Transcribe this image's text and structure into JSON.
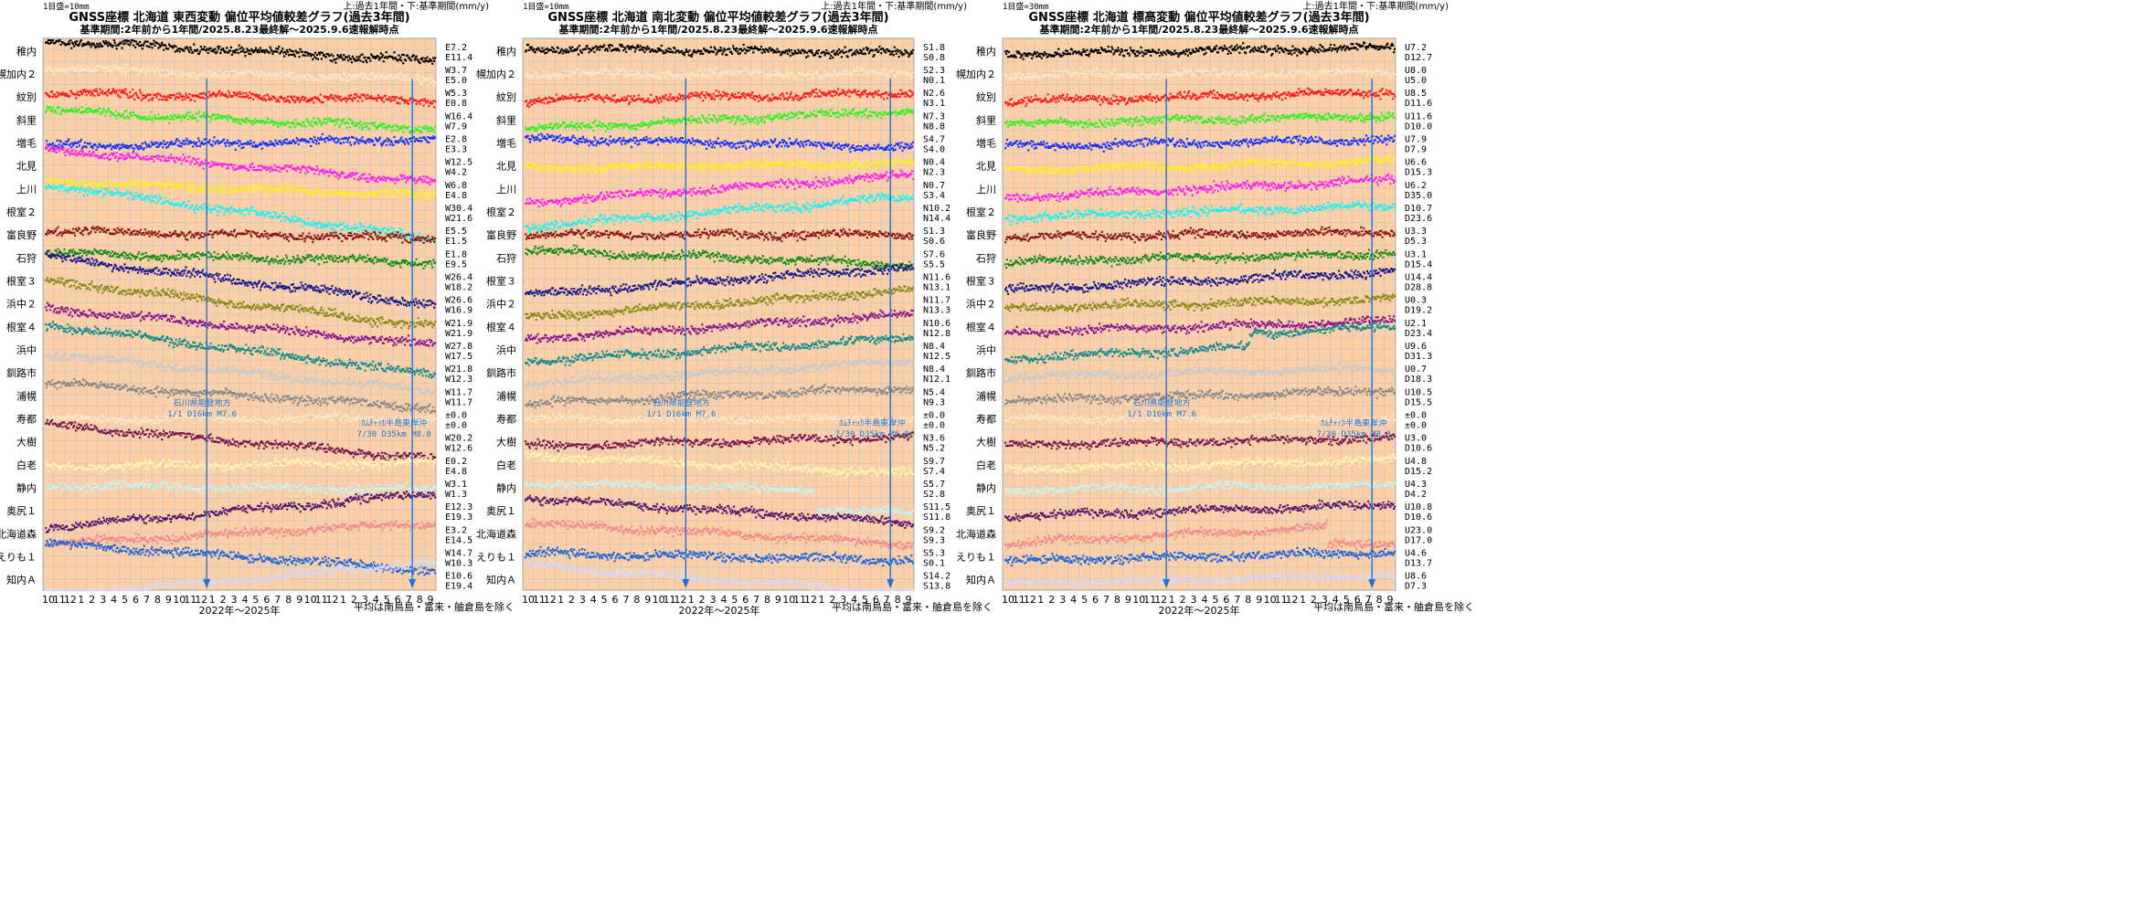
{
  "shared": {
    "x_ticks": [
      "10",
      "11",
      "12",
      "1",
      "2",
      "3",
      "4",
      "5",
      "6",
      "7",
      "8",
      "9",
      "10",
      "11",
      "12",
      "1",
      "2",
      "3",
      "4",
      "5",
      "6",
      "7",
      "8",
      "9",
      "10",
      "11",
      "12",
      "1",
      "2",
      "3",
      "4",
      "5",
      "6",
      "7",
      "8",
      "9"
    ],
    "x_label": "2022年～2025年",
    "footnote": "平均は南鳥島・富来・舳倉島を除く",
    "header_right": "上:過去1年間・下:基準期間(mm/y)",
    "subtitle": "基準期間:2年前から1年間/2025.8.23最終解～2025.9.6速報解時点",
    "event1_text": [
      "石川県能登地方",
      "1/1 D16km M7.6"
    ],
    "event2_text": [
      "ｶﾑﾁｬｯｶ半島東岸沖",
      "7/30 D35km M8.8"
    ],
    "colors": {
      "plot_bg": "#fbd0a9",
      "grid": "#c2c2c2",
      "event_line": "#1e74d4",
      "event_text": "#1e74d4"
    }
  },
  "chart_data": [
    {
      "type": "scatter",
      "scale": "1目盛=10mm",
      "title": "GNSS座標 北海道 東西変動 偏位平均値較差グラフ(過去3年間)",
      "stations": [
        "稚内",
        "幌加内２",
        "紋別",
        "斜里",
        "増毛",
        "北見",
        "上川",
        "根室２",
        "富良野",
        "石狩",
        "根室３",
        "浜中２",
        "根室４",
        "浜中",
        "釧路市",
        "浦幌",
        "寿都",
        "大樹",
        "白老",
        "静内",
        "奥尻１",
        "北海道森",
        "えりも１",
        "知内Ａ"
      ],
      "rates_top": [
        "E7.2",
        "W3.7",
        "W5.3",
        "W16.4",
        "E2.8",
        "W12.5",
        "W6.8",
        "W30.4",
        "E5.5",
        "E1.8",
        "W26.4",
        "W26.6",
        "W21.9",
        "W27.8",
        "W21.8",
        "W11.7",
        "±0.0",
        "W20.2",
        "E0.2",
        "W3.1",
        "E12.3",
        "E3.2",
        "W14.7",
        "E10.6"
      ],
      "rates_bottom": [
        "E11.4",
        "E5.0",
        "E0.8",
        "W7.9",
        "E3.3",
        "W4.2",
        "E4.8",
        "W21.6",
        "E1.5",
        "E9.5",
        "W18.2",
        "W16.9",
        "W21.9",
        "W17.5",
        "W12.3",
        "W11.7",
        "±0.0",
        "W12.6",
        "E4.8",
        "W1.3",
        "E19.3",
        "E14.5",
        "W10.3",
        "E19.4"
      ],
      "series": [
        {
          "name": "稚内",
          "color": "#000000",
          "trend": -0.9,
          "step_month": null,
          "step": 0
        },
        {
          "name": "幌加内２",
          "color": "#fde5c6",
          "trend": -0.5,
          "step_month": null,
          "step": 0
        },
        {
          "name": "紋別",
          "color": "#ff1a1a",
          "trend": -0.3,
          "step_month": null,
          "step": 0
        },
        {
          "name": "斜里",
          "color": "#33ee22",
          "trend": -0.8,
          "step_month": null,
          "step": 0
        },
        {
          "name": "増毛",
          "color": "#1a33ff",
          "trend": 0.3,
          "step_month": null,
          "step": 0
        },
        {
          "name": "北見",
          "color": "#ff22ee",
          "trend": -1.4,
          "step_month": null,
          "step": 0
        },
        {
          "name": "上川",
          "color": "#ffee22",
          "trend": -0.6,
          "step_month": null,
          "step": 0
        },
        {
          "name": "根室２",
          "color": "#22eeee",
          "trend": -2.4,
          "step_month": null,
          "step": 0
        },
        {
          "name": "富良野",
          "color": "#8b1a1a",
          "trend": -0.3,
          "step_month": null,
          "step": 0
        },
        {
          "name": "石狩",
          "color": "#1a8b1a",
          "trend": -0.4,
          "step_month": null,
          "step": 0
        },
        {
          "name": "根室３",
          "color": "#1a1a8b",
          "trend": -2.1,
          "step_month": null,
          "step": 0
        },
        {
          "name": "浜中２",
          "color": "#8b8b1a",
          "trend": -2.0,
          "step_month": null,
          "step": 0
        },
        {
          "name": "根室４",
          "color": "#8b1a8b",
          "trend": -1.6,
          "step_month": null,
          "step": 0
        },
        {
          "name": "浜中",
          "color": "#1a8b8b",
          "trend": -2.2,
          "step_month": null,
          "step": 0
        },
        {
          "name": "釧路市",
          "color": "#c8c8c8",
          "trend": -1.6,
          "step_month": null,
          "step": 0
        },
        {
          "name": "浦幌",
          "color": "#8a8a8a",
          "trend": -1.1,
          "step_month": null,
          "step": 0
        },
        {
          "name": "寿都",
          "color": "#fde5c6",
          "trend": 0,
          "step_month": null,
          "step": 0
        },
        {
          "name": "大樹",
          "color": "#7b1a4e",
          "trend": -1.5,
          "step_month": null,
          "step": 0
        },
        {
          "name": "白老",
          "color": "#fff5b0",
          "trend": 0.2,
          "step_month": null,
          "step": 0
        },
        {
          "name": "静内",
          "color": "#c8f2f0",
          "trend": -0.2,
          "step_month": null,
          "step": 0
        },
        {
          "name": "奥尻１",
          "color": "#5a1a6a",
          "trend": 1.5,
          "step_month": null,
          "step": 0
        },
        {
          "name": "北海道森",
          "color": "#f28a8a",
          "trend": 0.9,
          "step_month": null,
          "step": 0
        },
        {
          "name": "えりも１",
          "color": "#2266dd",
          "trend": -1.2,
          "step_month": null,
          "step": 0
        },
        {
          "name": "知内Ａ",
          "color": "#d8d8f4",
          "trend": 1.5,
          "step_month": null,
          "step": 0
        }
      ]
    },
    {
      "type": "scatter",
      "scale": "1目盛=10mm",
      "title": "GNSS座標 北海道 南北変動 偏位平均値較差グラフ(過去3年間)",
      "stations": [
        "稚内",
        "幌加内２",
        "紋別",
        "斜里",
        "増毛",
        "北見",
        "上川",
        "根室２",
        "富良野",
        "石狩",
        "根室３",
        "浜中２",
        "根室４",
        "浜中",
        "釧路市",
        "浦幌",
        "寿都",
        "大樹",
        "白老",
        "静内",
        "奥尻１",
        "北海道森",
        "えりも１",
        "知内Ａ"
      ],
      "rates_top": [
        "S1.8",
        "S2.3",
        "N2.6",
        "N7.3",
        "S4.7",
        "N0.4",
        "N0.7",
        "N10.2",
        "S1.3",
        "S7.6",
        "N11.6",
        "N11.7",
        "N10.6",
        "N8.4",
        "N8.4",
        "N5.4",
        "±0.0",
        "N3.6",
        "S9.7",
        "S5.7",
        "S11.5",
        "S9.2",
        "S5.3",
        "S14.2"
      ],
      "rates_bottom": [
        "S0.8",
        "N0.1",
        "N3.1",
        "N8.8",
        "S4.0",
        "N2.3",
        "S3.4",
        "N14.4",
        "S0.6",
        "S5.5",
        "N13.1",
        "N13.3",
        "N12.8",
        "N12.5",
        "N12.1",
        "N9.3",
        "±0.0",
        "N5.2",
        "S7.4",
        "S2.8",
        "S11.8",
        "S9.3",
        "S0.1",
        "S13.8"
      ],
      "series": [
        {
          "name": "稚内",
          "color": "#000000",
          "trend": -0.2,
          "step_month": null,
          "step": 0
        },
        {
          "name": "幌加内２",
          "color": "#fde5c6",
          "trend": 0,
          "step_month": null,
          "step": 0
        },
        {
          "name": "紋別",
          "color": "#ff1a1a",
          "trend": 0.3,
          "step_month": null,
          "step": 0
        },
        {
          "name": "斜里",
          "color": "#33ee22",
          "trend": 0.8,
          "step_month": null,
          "step": 0
        },
        {
          "name": "増毛",
          "color": "#1a33ff",
          "trend": -0.4,
          "step_month": null,
          "step": 0
        },
        {
          "name": "北見",
          "color": "#ffee22",
          "trend": 0.2,
          "step_month": null,
          "step": 0
        },
        {
          "name": "上川",
          "color": "#ff22ee",
          "trend": 1.2,
          "step_month": null,
          "step": 0
        },
        {
          "name": "根室２",
          "color": "#22eeee",
          "trend": 1.3,
          "step_month": null,
          "step": 0
        },
        {
          "name": "富良野",
          "color": "#8b1a1a",
          "trend": 0,
          "step_month": null,
          "step": 0
        },
        {
          "name": "石狩",
          "color": "#1a8b1a",
          "trend": -0.6,
          "step_month": null,
          "step": 0
        },
        {
          "name": "根室３",
          "color": "#1a1a8b",
          "trend": 1.2,
          "step_month": null,
          "step": 0
        },
        {
          "name": "浜中２",
          "color": "#8b8b1a",
          "trend": 1.2,
          "step_month": null,
          "step": 0
        },
        {
          "name": "根室４",
          "color": "#8b1a8b",
          "trend": 1.1,
          "step_month": null,
          "step": 0
        },
        {
          "name": "浜中",
          "color": "#1a8b8b",
          "trend": 1.0,
          "step_month": null,
          "step": 0
        },
        {
          "name": "釧路市",
          "color": "#c8c8c8",
          "trend": 1.0,
          "step_month": null,
          "step": 0
        },
        {
          "name": "浦幌",
          "color": "#8a8a8a",
          "trend": 0.7,
          "step_month": null,
          "step": 0
        },
        {
          "name": "寿都",
          "color": "#fde5c6",
          "trend": 0,
          "step_month": null,
          "step": 0
        },
        {
          "name": "大樹",
          "color": "#7b1a4e",
          "trend": 0.4,
          "step_month": null,
          "step": 0
        },
        {
          "name": "白老",
          "color": "#fff5b0",
          "trend": -0.8,
          "step_month": null,
          "step": 0
        },
        {
          "name": "静内",
          "color": "#c8f2f0",
          "trend": -0.4,
          "step_month": 26,
          "step": -0.9
        },
        {
          "name": "奥尻１",
          "color": "#5a1a6a",
          "trend": -1.1,
          "step_month": null,
          "step": 0
        },
        {
          "name": "北海道森",
          "color": "#f28a8a",
          "trend": -0.9,
          "step_month": null,
          "step": 0
        },
        {
          "name": "えりも１",
          "color": "#2266dd",
          "trend": -0.3,
          "step_month": null,
          "step": 0
        },
        {
          "name": "知内Ａ",
          "color": "#d8d8f4",
          "trend": -1.3,
          "step_month": null,
          "step": 0
        }
      ]
    },
    {
      "type": "scatter",
      "scale": "1目盛=30mm",
      "title": "GNSS座標 北海道 標高変動 偏位平均値較差グラフ(過去3年間)",
      "stations": [
        "稚内",
        "幌加内２",
        "紋別",
        "斜里",
        "増毛",
        "北見",
        "上川",
        "根室２",
        "富良野",
        "石狩",
        "根室３",
        "浜中２",
        "根室４",
        "浜中",
        "釧路市",
        "浦幌",
        "寿都",
        "大樹",
        "白老",
        "静内",
        "奥尻１",
        "北海道森",
        "えりも１",
        "知内Ａ"
      ],
      "rates_top": [
        "U7.2",
        "U8.0",
        "U8.5",
        "U11.6",
        "U7.9",
        "U6.6",
        "U6.2",
        "D10.7",
        "U3.3",
        "U3.1",
        "U14.4",
        "U0.3",
        "U2.1",
        "U9.6",
        "U0.7",
        "U10.5",
        "±0.0",
        "U3.0",
        "U4.8",
        "U4.3",
        "U10.8",
        "U23.0",
        "U4.6",
        "U8.6"
      ],
      "rates_bottom": [
        "D12.7",
        "U5.0",
        "D11.6",
        "D10.0",
        "D7.9",
        "D15.3",
        "D35.0",
        "D23.6",
        "D5.3",
        "D15.4",
        "D28.8",
        "D19.2",
        "D23.4",
        "D31.3",
        "D18.3",
        "D15.5",
        "±0.0",
        "D10.6",
        "D15.2",
        "D4.2",
        "D10.6",
        "D17.0",
        "D13.7",
        "D7.3"
      ],
      "series": [
        {
          "name": "稚内",
          "color": "#000000",
          "trend": 0.3,
          "step_month": null,
          "step": 0
        },
        {
          "name": "幌加内２",
          "color": "#fde5c6",
          "trend": 0.1,
          "step_month": null,
          "step": 0
        },
        {
          "name": "紋別",
          "color": "#ff1a1a",
          "trend": 0.4,
          "step_month": null,
          "step": 0
        },
        {
          "name": "斜里",
          "color": "#33ee22",
          "trend": 0.4,
          "step_month": null,
          "step": 0
        },
        {
          "name": "増毛",
          "color": "#1a33ff",
          "trend": 0.3,
          "step_month": null,
          "step": 0
        },
        {
          "name": "北見",
          "color": "#ffee22",
          "trend": 0.4,
          "step_month": null,
          "step": 0
        },
        {
          "name": "上川",
          "color": "#ff22ee",
          "trend": 0.8,
          "step_month": null,
          "step": 0
        },
        {
          "name": "根室２",
          "color": "#22eeee",
          "trend": 0.5,
          "step_month": null,
          "step": 0
        },
        {
          "name": "富良野",
          "color": "#8b1a1a",
          "trend": 0.2,
          "step_month": null,
          "step": 0
        },
        {
          "name": "石狩",
          "color": "#1a8b1a",
          "trend": 0.4,
          "step_month": null,
          "step": 0
        },
        {
          "name": "根室３",
          "color": "#1a1a8b",
          "trend": 0.8,
          "step_month": null,
          "step": 0
        },
        {
          "name": "浜中２",
          "color": "#8b8b1a",
          "trend": 0.4,
          "step_month": null,
          "step": 0
        },
        {
          "name": "根室４",
          "color": "#8b1a8b",
          "trend": 0.5,
          "step_month": null,
          "step": 0
        },
        {
          "name": "浜中",
          "color": "#1a8b8b",
          "trend": 0.8,
          "step_month": 22,
          "step": 0.6
        },
        {
          "name": "釧路市",
          "color": "#c8c8c8",
          "trend": 0.4,
          "step_month": null,
          "step": 0
        },
        {
          "name": "浦幌",
          "color": "#8a8a8a",
          "trend": 0.5,
          "step_month": null,
          "step": 0
        },
        {
          "name": "寿都",
          "color": "#fde5c6",
          "trend": 0,
          "step_month": null,
          "step": 0
        },
        {
          "name": "大樹",
          "color": "#7b1a4e",
          "trend": 0.3,
          "step_month": null,
          "step": 0
        },
        {
          "name": "白老",
          "color": "#fff5b0",
          "trend": 0.4,
          "step_month": null,
          "step": 0
        },
        {
          "name": "静内",
          "color": "#c8f2f0",
          "trend": 0.2,
          "step_month": null,
          "step": 0
        },
        {
          "name": "奥尻１",
          "color": "#5a1a6a",
          "trend": 0.5,
          "step_month": null,
          "step": 0
        },
        {
          "name": "北海道森",
          "color": "#f28a8a",
          "trend": 0.9,
          "step_month": 29,
          "step": -0.8
        },
        {
          "name": "えりも１",
          "color": "#2266dd",
          "trend": 0.4,
          "step_month": null,
          "step": 0
        },
        {
          "name": "知内Ａ",
          "color": "#d8d8f4",
          "trend": 0.4,
          "step_month": null,
          "step": 0
        }
      ]
    }
  ]
}
